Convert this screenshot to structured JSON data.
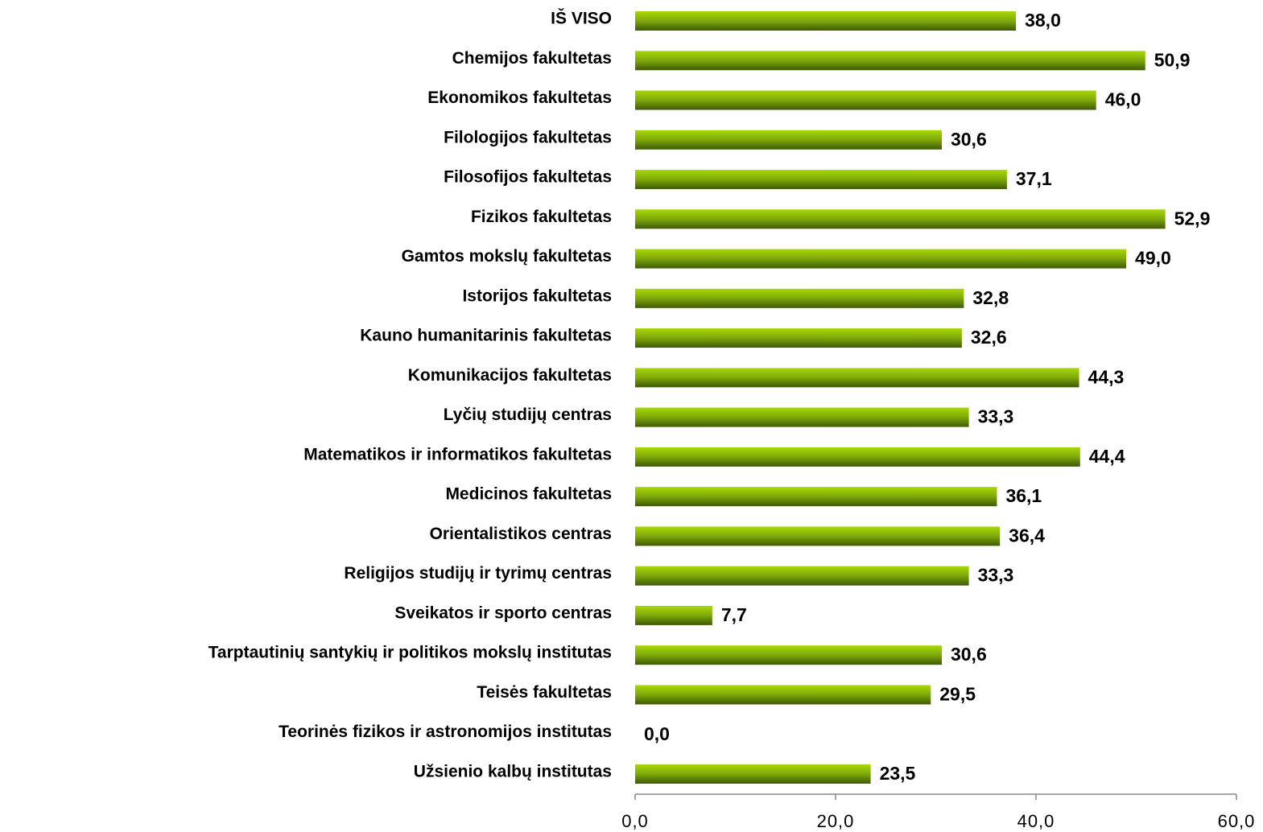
{
  "chart_data": {
    "type": "bar",
    "orientation": "horizontal",
    "categories": [
      "IŠ VISO",
      "Chemijos fakultetas",
      "Ekonomikos fakultetas",
      "Filologijos fakultetas",
      "Filosofijos fakultetas",
      "Fizikos fakultetas",
      "Gamtos mokslų fakultetas",
      "Istorijos fakultetas",
      "Kauno humanitarinis fakultetas",
      "Komunikacijos fakultetas",
      "Lyčių studijų centras",
      "Matematikos ir informatikos fakultetas",
      "Medicinos fakultetas",
      "Orientalistikos centras",
      "Religijos studijų ir tyrimų centras",
      "Sveikatos ir sporto centras",
      "Tarptautinių santykių ir politikos mokslų institutas",
      "Teisės fakultetas",
      "Teorinės fizikos ir astronomijos institutas",
      "Užsienio kalbų institutas"
    ],
    "values": [
      38.0,
      50.9,
      46.0,
      30.6,
      37.1,
      52.9,
      49.0,
      32.8,
      32.6,
      44.3,
      33.3,
      44.4,
      36.1,
      36.4,
      33.3,
      7.7,
      30.6,
      29.5,
      0.0,
      23.5
    ],
    "value_labels": [
      "38,0",
      "50,9",
      "46,0",
      "30,6",
      "37,1",
      "52,9",
      "49,0",
      "32,8",
      "32,6",
      "44,3",
      "33,3",
      "44,4",
      "36,1",
      "36,4",
      "33,3",
      "7,7",
      "30,6",
      "29,5",
      "0,0",
      "23,5"
    ],
    "color": "#7ea80a",
    "xlim": [
      0,
      60
    ],
    "xticks": [
      {
        "value": 0,
        "label": "0,0"
      },
      {
        "value": 20,
        "label": "20,0"
      },
      {
        "value": 40,
        "label": "40,0"
      },
      {
        "value": 60,
        "label": "60,0"
      }
    ],
    "grid": false
  }
}
